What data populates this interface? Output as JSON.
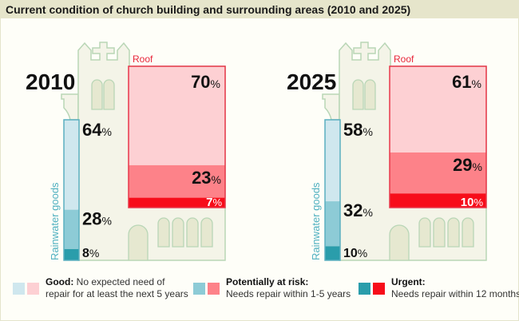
{
  "title": "Current condition of church building and surrounding areas (2010 and 2025)",
  "colors": {
    "rainwater": {
      "good": "#cfe7ee",
      "risk": "#8dcbd6",
      "urgent": "#2a9dab",
      "stroke": "#5aafbf",
      "label": "#4fb0c0"
    },
    "roof": {
      "good": "#fdd0d3",
      "risk": "#fd8289",
      "urgent": "#f70d1a",
      "stroke": "#e8374a",
      "label": "#e8263a"
    },
    "church_fill": "#f4f4e8",
    "church_stroke": "#b9d6b6",
    "window_fill": "#e6e8d0"
  },
  "chart_data": {
    "type": "stacked-bar",
    "categories": [
      "Good",
      "Potentially at risk",
      "Urgent"
    ],
    "panels": [
      {
        "year": "2010",
        "rainwater_label": "Rainwater goods",
        "roof_label": "Roof",
        "rainwater": [
          64,
          28,
          8
        ],
        "roof": [
          70,
          23,
          7
        ]
      },
      {
        "year": "2025",
        "rainwater_label": "Rainwater goods",
        "roof_label": "Roof",
        "rainwater": [
          58,
          32,
          10
        ],
        "roof": [
          61,
          29,
          10
        ]
      }
    ],
    "unit": "%"
  },
  "legend": [
    {
      "bold": "Good:",
      "text1": " No expected need of",
      "text2": "repair for at least the next 5 years"
    },
    {
      "bold": "Potentially at risk:",
      "text1": "",
      "text2": "Needs repair within 1-5 years"
    },
    {
      "bold": "Urgent:",
      "text1": "",
      "text2": "Needs repair within 12 months"
    }
  ]
}
